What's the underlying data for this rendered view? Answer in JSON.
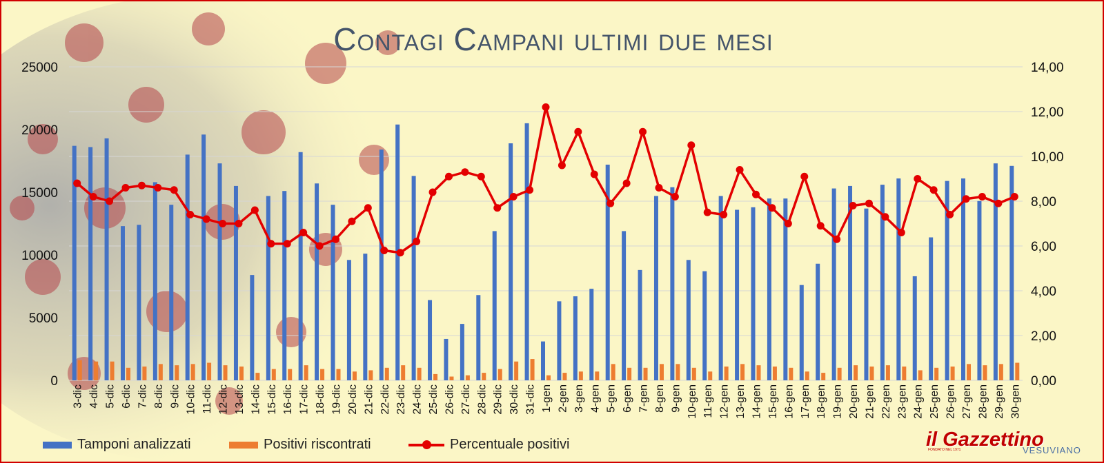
{
  "chart_data": {
    "type": "bar",
    "title": "Contagi Campani ultimi due mesi",
    "categories": [
      "3-dic",
      "4-dic",
      "5-dic",
      "6-dic",
      "7-dic",
      "8-dic",
      "9-dic",
      "10-dic",
      "11-dic",
      "12-dic",
      "13-dic",
      "14-dic",
      "15-dic",
      "16-dic",
      "17-dic",
      "18-dic",
      "19-dic",
      "20-dic",
      "21-dic",
      "22-dic",
      "23-dic",
      "24-dic",
      "25-dic",
      "26-dic",
      "27-dic",
      "28-dic",
      "29-dic",
      "30-dic",
      "31-dic",
      "1-gen",
      "2-gen",
      "3-gen",
      "4-gen",
      "5-gen",
      "6-gen",
      "7-gen",
      "8-gen",
      "9-gen",
      "10-gen",
      "11-gen",
      "12-gen",
      "13-gen",
      "14-gen",
      "15-gen",
      "16-gen",
      "17-gen",
      "18-gen",
      "19-gen",
      "20-gen",
      "21-gen",
      "22-gen",
      "23-gen",
      "24-gen",
      "25-gen",
      "26-gen",
      "27-gen",
      "28-gen",
      "29-gen",
      "30-gen"
    ],
    "series": [
      {
        "name": "Tamponi analizzati",
        "type": "bar",
        "axis": "left",
        "color": "#4472c4",
        "values": [
          18700,
          18600,
          19300,
          12300,
          12400,
          15800,
          14000,
          18000,
          19600,
          17300,
          15500,
          8400,
          14700,
          15100,
          18200,
          15700,
          14000,
          9600,
          10100,
          18400,
          20400,
          16300,
          6400,
          3300,
          4500,
          6800,
          11900,
          18900,
          20500,
          3100,
          6300,
          6700,
          7300,
          17200,
          11900,
          8800,
          14700,
          15400,
          9600,
          8700,
          14700,
          13600,
          13800,
          14500,
          14500,
          7600,
          9300,
          15300,
          15500,
          13700,
          15600,
          16100,
          8300,
          11400,
          15900,
          16100,
          14300,
          17300,
          17100
        ]
      },
      {
        "name": "Positivi riscontrati",
        "type": "bar",
        "axis": "left",
        "color": "#ed7d31",
        "values": [
          1600,
          1500,
          1500,
          1000,
          1100,
          1300,
          1200,
          1300,
          1400,
          1200,
          1100,
          600,
          900,
          900,
          1200,
          900,
          900,
          700,
          800,
          1000,
          1200,
          1000,
          500,
          300,
          400,
          600,
          900,
          1500,
          1700,
          400,
          600,
          700,
          700,
          1300,
          1000,
          1000,
          1300,
          1300,
          1000,
          700,
          1100,
          1300,
          1200,
          1100,
          1000,
          700,
          600,
          1000,
          1200,
          1100,
          1200,
          1100,
          800,
          1000,
          1100,
          1300,
          1200,
          1300,
          1400
        ]
      },
      {
        "name": "Percentuale positivi",
        "type": "line",
        "axis": "right",
        "color": "#e30000",
        "values": [
          8.8,
          8.2,
          8.0,
          8.6,
          8.7,
          8.6,
          8.5,
          7.4,
          7.2,
          7.0,
          7.0,
          7.6,
          6.1,
          6.1,
          6.6,
          6.0,
          6.3,
          7.1,
          7.7,
          5.8,
          5.7,
          6.2,
          8.4,
          9.1,
          9.3,
          9.1,
          7.7,
          8.2,
          8.5,
          12.2,
          9.6,
          11.1,
          9.2,
          7.9,
          8.8,
          11.1,
          8.6,
          8.2,
          10.5,
          7.5,
          7.4,
          9.4,
          8.3,
          7.7,
          7.0,
          9.1,
          6.9,
          6.3,
          7.8,
          7.9,
          7.3,
          6.6,
          9.0,
          8.5,
          7.4,
          8.1,
          8.2,
          7.9,
          8.2
        ]
      }
    ],
    "left_axis": {
      "ylim": [
        0,
        25000
      ],
      "ticks": [
        "0",
        "5000",
        "10000",
        "15000",
        "20000",
        "25000"
      ],
      "tick_values": [
        0,
        5000,
        10000,
        15000,
        20000,
        25000
      ]
    },
    "right_axis": {
      "ylim": [
        0,
        14
      ],
      "ticks": [
        "0,00",
        "2,00",
        "4,00",
        "6,00",
        "8,00",
        "10,00",
        "12,00",
        "14,00"
      ],
      "tick_values": [
        0,
        2,
        4,
        6,
        8,
        10,
        12,
        14
      ]
    },
    "grid": true,
    "legend": "bottom-left",
    "legend_labels": [
      "Tamponi analizzati",
      "Positivi riscontrati",
      "Percentuale positivi"
    ]
  },
  "logo": {
    "main": "il Gazzettino",
    "sub": "VESUVIANO",
    "fine": "FONDATO NEL 1971"
  }
}
